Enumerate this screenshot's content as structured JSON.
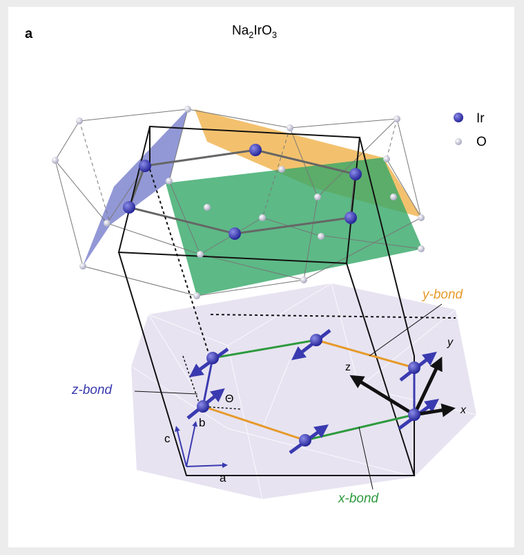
{
  "panel_label": "a",
  "title": {
    "segments": [
      "Na",
      "2",
      "IrO",
      "3"
    ]
  },
  "legend": [
    "Ir",
    "O"
  ],
  "bond_labels": [
    "y-bond",
    "z-bond",
    "x-bond"
  ],
  "angle_label": "Θ",
  "lattice_labels": [
    "c",
    "b",
    "a"
  ],
  "axis_labels": [
    "z",
    "y",
    "x"
  ]
}
